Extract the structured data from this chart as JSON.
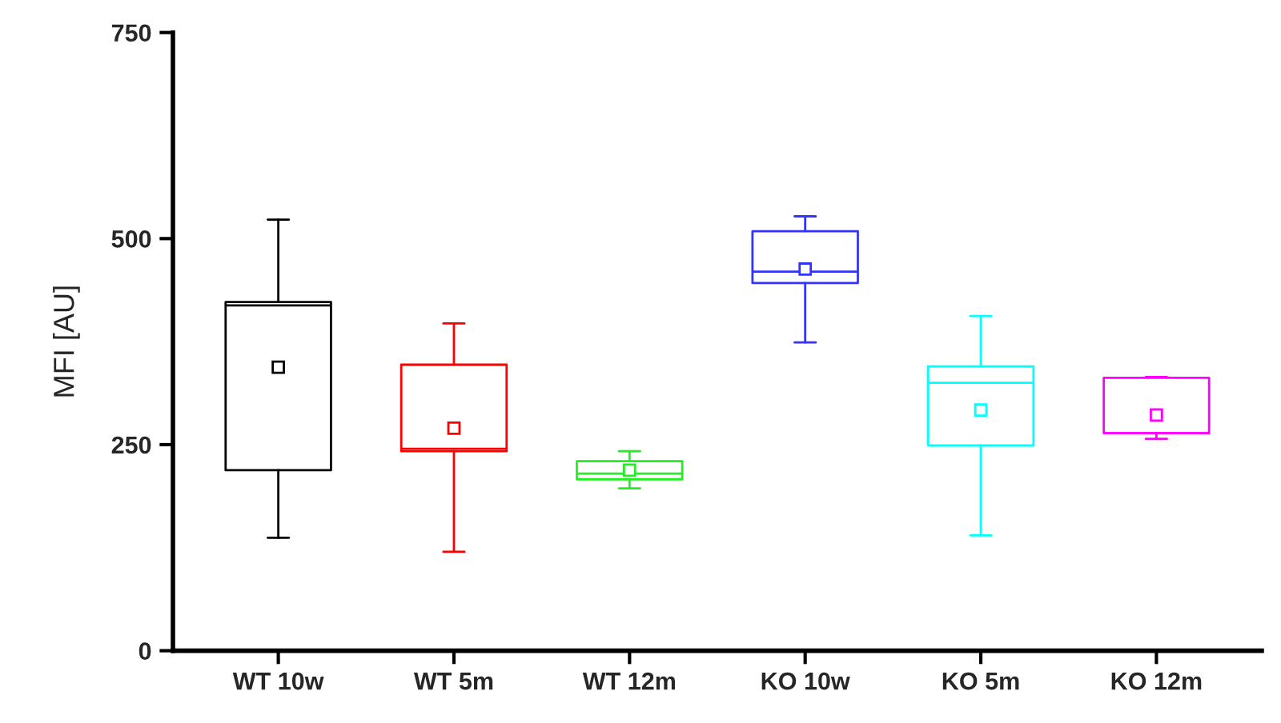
{
  "chart_data": {
    "type": "box",
    "ylabel": "MFI [AU]",
    "categories": [
      "WT 10w",
      "WT 5m",
      "WT 12m",
      "KO 10w",
      "KO 5m",
      "KO 12m"
    ],
    "colors": [
      "#000000",
      "#ff0000",
      "#22ee22",
      "#3333ff",
      "#00ffff",
      "#ff00ff"
    ],
    "boxes": [
      {
        "low": 137,
        "q1": 219,
        "median": 419,
        "q3": 423,
        "high": 523,
        "mean": 344
      },
      {
        "low": 120,
        "q1": 242,
        "median": 245,
        "q3": 347,
        "high": 397,
        "mean": 270
      },
      {
        "low": 197,
        "q1": 208,
        "median": 215,
        "q3": 230,
        "high": 242,
        "mean": 219
      },
      {
        "low": 374,
        "q1": 446,
        "median": 460,
        "q3": 509,
        "high": 527,
        "mean": 463
      },
      {
        "low": 140,
        "q1": 249,
        "median": 325,
        "q3": 345,
        "high": 406,
        "mean": 292
      },
      {
        "low": 257,
        "q1": 264,
        "median": 264,
        "q3": 331,
        "high": 332,
        "mean": 286
      }
    ],
    "ylim": [
      0,
      750
    ],
    "yticks": [
      0,
      250,
      500,
      750
    ],
    "grid": false,
    "marker": "square"
  }
}
